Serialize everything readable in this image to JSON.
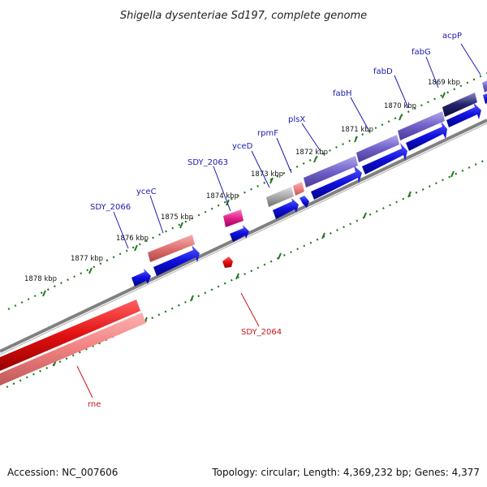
{
  "title": "Shigella dysenteriae Sd197, complete genome",
  "footer": {
    "accession": "Accession: NC_007606",
    "summary": "Topology: circular; Length: 4,369,232 bp; Genes: 4,377"
  },
  "kbp_ticks": [
    {
      "label": "1869 kbp"
    },
    {
      "label": "1870 kbp"
    },
    {
      "label": "1871 kbp"
    },
    {
      "label": "1872 kbp"
    },
    {
      "label": "1873 kbp"
    },
    {
      "label": "1874 kbp"
    },
    {
      "label": "1875 kbp"
    },
    {
      "label": "1876 kbp"
    },
    {
      "label": "1877 kbp"
    },
    {
      "label": "1878 kbp"
    }
  ],
  "gene_labels": {
    "acpP": "acpP",
    "fabG": "fabG",
    "fabD": "fabD",
    "fabH": "fabH",
    "plsX": "plsX",
    "rpmF": "rpmF",
    "yceD": "yceD",
    "SDY_2063": "SDY_2063",
    "yceC": "yceC",
    "SDY_2066": "SDY_2066",
    "SDY_2064": "SDY_2064",
    "rne": "rne"
  },
  "colors": {
    "forward_gene": "#1010e0",
    "reverse_gene": "#e01010",
    "purple_block": "#7060c8",
    "pink_block": "#e07070",
    "magenta_block": "#e0208a",
    "grey_block": "#a8a8a8",
    "backbone": "#808080",
    "tick": "#1e7a1e",
    "label_blue": "#1a1ab0",
    "label_red": "#c41616"
  }
}
